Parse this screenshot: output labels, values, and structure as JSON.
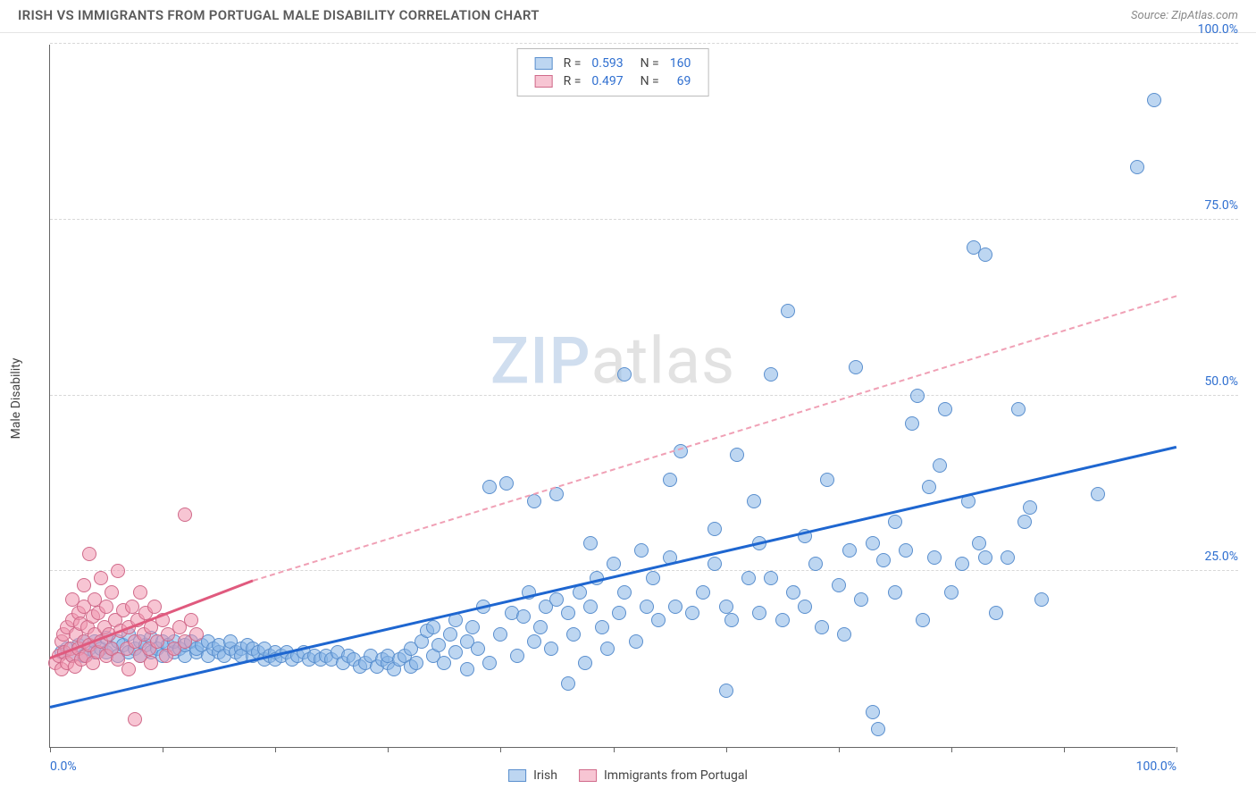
{
  "header": {
    "title": "IRISH VS IMMIGRANTS FROM PORTUGAL MALE DISABILITY CORRELATION CHART",
    "source": "Source: ZipAtlas.com"
  },
  "watermark": {
    "part1": "ZIP",
    "part2": "atlas"
  },
  "chart": {
    "type": "scatter",
    "ylabel": "Male Disability",
    "background_color": "#ffffff",
    "grid_color": "#d8d8d8",
    "axis_color": "#666666",
    "xlim": [
      0,
      100
    ],
    "ylim": [
      0,
      100
    ],
    "yticks": [
      {
        "v": 25,
        "label": "25.0%"
      },
      {
        "v": 50,
        "label": "50.0%"
      },
      {
        "v": 75,
        "label": "75.0%"
      },
      {
        "v": 100,
        "label": "100.0%"
      }
    ],
    "xticks_minor": [
      0,
      10,
      20,
      30,
      40,
      50,
      60,
      70,
      80,
      90,
      100
    ],
    "xticks_labeled": [
      {
        "v": 0,
        "label": "0.0%"
      },
      {
        "v": 100,
        "label": "100.0%"
      }
    ],
    "tick_label_color": "#2f6fd0",
    "tick_label_fontsize": 14,
    "marker_radius": 8,
    "marker_border_width": 1,
    "series": [
      {
        "name": "Irish",
        "fill": "rgba(135, 180, 230, 0.55)",
        "stroke": "#5a8fce",
        "R": "0.593",
        "N": "160",
        "trend": {
          "x1": 0,
          "y1": 5.5,
          "x2": 100,
          "y2": 42.5,
          "color": "#1e66d0",
          "width": 3,
          "dash": false
        },
        "points": [
          [
            1,
            13.5
          ],
          [
            1.5,
            14
          ],
          [
            2,
            13
          ],
          [
            2.5,
            14.5
          ],
          [
            3,
            13
          ],
          [
            3,
            15
          ],
          [
            3.5,
            14
          ],
          [
            4,
            13.5
          ],
          [
            4,
            15
          ],
          [
            4.5,
            14
          ],
          [
            5,
            13.5
          ],
          [
            5,
            15.5
          ],
          [
            5.5,
            14
          ],
          [
            6,
            13
          ],
          [
            6,
            15
          ],
          [
            6.5,
            14.5
          ],
          [
            7,
            13.5
          ],
          [
            7,
            16
          ],
          [
            7.5,
            14
          ],
          [
            8,
            13
          ],
          [
            8,
            15
          ],
          [
            8.5,
            14.5
          ],
          [
            9,
            13.5
          ],
          [
            9,
            15.5
          ],
          [
            9.5,
            14
          ],
          [
            10,
            13
          ],
          [
            10,
            15
          ],
          [
            10.5,
            14.5
          ],
          [
            11,
            13.5
          ],
          [
            11,
            15
          ],
          [
            11.5,
            14
          ],
          [
            12,
            13
          ],
          [
            12,
            14.5
          ],
          [
            12.5,
            15
          ],
          [
            13,
            13.5
          ],
          [
            13,
            14
          ],
          [
            13.5,
            14.5
          ],
          [
            14,
            13
          ],
          [
            14,
            15
          ],
          [
            14.5,
            14
          ],
          [
            15,
            13.5
          ],
          [
            15,
            14.5
          ],
          [
            15.5,
            13
          ],
          [
            16,
            14
          ],
          [
            16,
            15
          ],
          [
            16.5,
            13.5
          ],
          [
            17,
            14
          ],
          [
            17,
            13
          ],
          [
            17.5,
            14.5
          ],
          [
            18,
            13
          ],
          [
            18,
            14
          ],
          [
            18.5,
            13.5
          ],
          [
            19,
            12.5
          ],
          [
            19,
            14
          ],
          [
            19.5,
            13
          ],
          [
            20,
            13.5
          ],
          [
            20,
            12.5
          ],
          [
            20.5,
            13
          ],
          [
            21,
            13.5
          ],
          [
            21.5,
            12.5
          ],
          [
            22,
            13
          ],
          [
            22.5,
            13.5
          ],
          [
            23,
            12.5
          ],
          [
            23.5,
            13
          ],
          [
            24,
            12.5
          ],
          [
            24.5,
            13
          ],
          [
            25,
            12.5
          ],
          [
            25.5,
            13.5
          ],
          [
            26,
            12
          ],
          [
            26.5,
            13
          ],
          [
            27,
            12.5
          ],
          [
            27.5,
            11.5
          ],
          [
            28,
            12
          ],
          [
            28.5,
            13
          ],
          [
            29,
            11.5
          ],
          [
            29.5,
            12.5
          ],
          [
            30,
            12
          ],
          [
            30,
            13
          ],
          [
            30.5,
            11
          ],
          [
            31,
            12.5
          ],
          [
            31.5,
            13
          ],
          [
            32,
            11.5
          ],
          [
            32,
            14
          ],
          [
            32.5,
            12
          ],
          [
            33,
            15
          ],
          [
            33.5,
            16.5
          ],
          [
            34,
            13
          ],
          [
            34,
            17
          ],
          [
            34.5,
            14.5
          ],
          [
            35,
            12
          ],
          [
            35.5,
            16
          ],
          [
            36,
            13.5
          ],
          [
            36,
            18
          ],
          [
            37,
            15
          ],
          [
            37,
            11
          ],
          [
            37.5,
            17
          ],
          [
            38,
            14
          ],
          [
            38.5,
            20
          ],
          [
            39,
            12
          ],
          [
            39,
            37
          ],
          [
            40,
            16
          ],
          [
            40.5,
            37.5
          ],
          [
            41,
            19
          ],
          [
            41.5,
            13
          ],
          [
            42,
            18.5
          ],
          [
            42.5,
            22
          ],
          [
            43,
            15
          ],
          [
            43,
            35
          ],
          [
            43.5,
            17
          ],
          [
            44,
            20
          ],
          [
            44.5,
            14
          ],
          [
            45,
            21
          ],
          [
            45,
            36
          ],
          [
            46,
            9
          ],
          [
            46,
            19
          ],
          [
            46.5,
            16
          ],
          [
            47,
            22
          ],
          [
            47.5,
            12
          ],
          [
            48,
            20
          ],
          [
            48,
            29
          ],
          [
            48.5,
            24
          ],
          [
            49,
            17
          ],
          [
            49.5,
            14
          ],
          [
            50,
            26
          ],
          [
            50.5,
            19
          ],
          [
            51,
            53
          ],
          [
            51,
            22
          ],
          [
            52,
            15
          ],
          [
            52.5,
            28
          ],
          [
            53,
            20
          ],
          [
            53.5,
            24
          ],
          [
            54,
            18
          ],
          [
            55,
            27
          ],
          [
            55,
            38
          ],
          [
            55.5,
            20
          ],
          [
            56,
            42
          ],
          [
            57,
            19
          ],
          [
            58,
            22
          ],
          [
            59,
            31
          ],
          [
            59,
            26
          ],
          [
            60,
            8
          ],
          [
            60,
            20
          ],
          [
            60.5,
            18
          ],
          [
            61,
            41.5
          ],
          [
            62,
            24
          ],
          [
            62.5,
            35
          ],
          [
            63,
            19
          ],
          [
            63,
            29
          ],
          [
            64,
            24
          ],
          [
            64,
            53
          ],
          [
            65,
            18
          ],
          [
            65.5,
            62
          ],
          [
            66,
            22
          ],
          [
            67,
            30
          ],
          [
            67,
            20
          ],
          [
            68,
            26
          ],
          [
            68.5,
            17
          ],
          [
            69,
            38
          ],
          [
            70,
            23
          ],
          [
            70.5,
            16
          ],
          [
            71,
            28
          ],
          [
            71.5,
            54
          ],
          [
            72,
            21
          ],
          [
            73,
            29
          ],
          [
            73,
            5
          ],
          [
            73.5,
            2.5
          ],
          [
            74,
            26.5
          ],
          [
            75,
            32
          ],
          [
            75,
            22
          ],
          [
            76,
            28
          ],
          [
            76.5,
            46
          ],
          [
            77,
            50
          ],
          [
            77.5,
            18
          ],
          [
            78,
            37
          ],
          [
            78.5,
            27
          ],
          [
            79,
            40
          ],
          [
            79.5,
            48
          ],
          [
            80,
            22
          ],
          [
            81,
            26
          ],
          [
            81.5,
            35
          ],
          [
            82,
            71
          ],
          [
            82.5,
            29
          ],
          [
            83,
            27
          ],
          [
            83,
            70
          ],
          [
            84,
            19
          ],
          [
            85,
            27
          ],
          [
            86,
            48
          ],
          [
            86.5,
            32
          ],
          [
            87,
            34
          ],
          [
            88,
            21
          ],
          [
            93,
            36
          ],
          [
            96.5,
            82.5
          ],
          [
            98,
            92
          ]
        ]
      },
      {
        "name": "Immigrants from Portugal",
        "fill": "rgba(240, 150, 175, 0.55)",
        "stroke": "#d06a8a",
        "R": "0.497",
        "N": "69",
        "trend_solid": {
          "x1": 0,
          "y1": 12.5,
          "x2": 18,
          "y2": 23.5,
          "color": "#e05a7e",
          "width": 3
        },
        "trend_dash": {
          "x1": 18,
          "y1": 23.5,
          "x2": 100,
          "y2": 64,
          "color": "#f0a0b5"
        },
        "points": [
          [
            0.5,
            12
          ],
          [
            0.8,
            13
          ],
          [
            1,
            15
          ],
          [
            1,
            11
          ],
          [
            1.2,
            16
          ],
          [
            1.3,
            13.5
          ],
          [
            1.5,
            17
          ],
          [
            1.5,
            12
          ],
          [
            1.8,
            14
          ],
          [
            2,
            18
          ],
          [
            2,
            21
          ],
          [
            2,
            13
          ],
          [
            2.2,
            11.5
          ],
          [
            2.3,
            16
          ],
          [
            2.5,
            19
          ],
          [
            2.5,
            14
          ],
          [
            2.7,
            17.5
          ],
          [
            2.8,
            12.5
          ],
          [
            3,
            20
          ],
          [
            3,
            15
          ],
          [
            3,
            23
          ],
          [
            3.2,
            13
          ],
          [
            3.3,
            17
          ],
          [
            3.5,
            27.5
          ],
          [
            3.5,
            14.5
          ],
          [
            3.8,
            18.5
          ],
          [
            3.8,
            12
          ],
          [
            4,
            16
          ],
          [
            4,
            21
          ],
          [
            4.2,
            13.5
          ],
          [
            4.3,
            19
          ],
          [
            4.5,
            15
          ],
          [
            4.5,
            24
          ],
          [
            4.8,
            17
          ],
          [
            5,
            13
          ],
          [
            5,
            20
          ],
          [
            5.2,
            16
          ],
          [
            5.5,
            14
          ],
          [
            5.5,
            22
          ],
          [
            5.8,
            18
          ],
          [
            6,
            12.5
          ],
          [
            6,
            25
          ],
          [
            6.3,
            16.5
          ],
          [
            6.5,
            19.5
          ],
          [
            6.8,
            14
          ],
          [
            7,
            17
          ],
          [
            7,
            11
          ],
          [
            7.3,
            20
          ],
          [
            7.5,
            15
          ],
          [
            7.5,
            4
          ],
          [
            7.8,
            18
          ],
          [
            8,
            13
          ],
          [
            8,
            22
          ],
          [
            8.3,
            16
          ],
          [
            8.5,
            19
          ],
          [
            8.8,
            14
          ],
          [
            9,
            17
          ],
          [
            9,
            12
          ],
          [
            9.3,
            20
          ],
          [
            9.5,
            15
          ],
          [
            10,
            18
          ],
          [
            10.3,
            13
          ],
          [
            10.5,
            16
          ],
          [
            11,
            14
          ],
          [
            11.5,
            17
          ],
          [
            12,
            33
          ],
          [
            12,
            15
          ],
          [
            12.5,
            18
          ],
          [
            13,
            16
          ]
        ]
      }
    ],
    "legend_bottom_labels": {
      "a": "Irish",
      "b": "Immigrants from Portugal"
    },
    "stats_legend": {
      "value_color": "#2f6fd0",
      "rows": [
        {
          "swatch_fill": "rgba(135,180,230,0.55)",
          "swatch_stroke": "#5a8fce",
          "R": "0.593",
          "N": "160"
        },
        {
          "swatch_fill": "rgba(240,150,175,0.55)",
          "swatch_stroke": "#d06a8a",
          "R": "0.497",
          "N": "69"
        }
      ]
    }
  }
}
